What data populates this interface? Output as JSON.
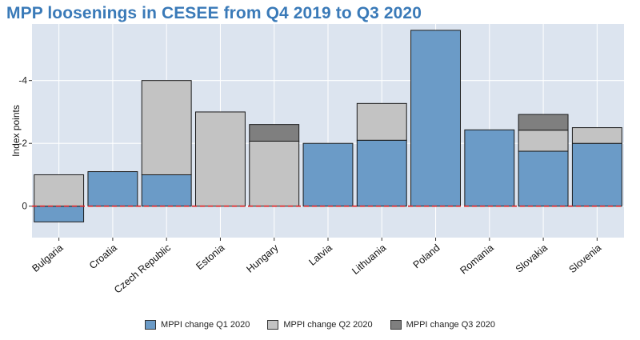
{
  "chart_data": {
    "type": "bar",
    "stacked": true,
    "title": "MPP loosenings in CESEE from Q4 2019 to Q3 2020",
    "xlabel": "",
    "ylabel": "Index points",
    "ylim": [
      -1,
      5.8
    ],
    "yticks": [
      0,
      2,
      4
    ],
    "ytick_labels": [
      "0",
      "-2",
      "-4"
    ],
    "categories": [
      "Bulgaria",
      "Croatia",
      "Czech Republic",
      "Estonia",
      "Hungary",
      "Latvia",
      "Lithuania",
      "Poland",
      "Romania",
      "Slovakia",
      "Slovenia"
    ],
    "series": [
      {
        "name": "MPPI change Q1 2020",
        "color": "#6b9bc7",
        "values": [
          -0.5,
          1.1,
          1.0,
          0,
          0,
          2.0,
          2.1,
          5.6,
          2.43,
          1.75,
          2.0
        ]
      },
      {
        "name": "MPPI change Q2 2020",
        "color": "#c3c3c3",
        "values": [
          1.0,
          0,
          3.0,
          3.0,
          2.07,
          0,
          1.17,
          0,
          0,
          0.67,
          0.5
        ]
      },
      {
        "name": "MPPI change Q3 2020",
        "color": "#7f7f7f",
        "values": [
          0,
          0,
          0,
          0,
          0.53,
          0,
          0,
          0,
          0,
          0.5,
          0
        ]
      }
    ],
    "reference_line": {
      "y": 0,
      "color": "#e02020",
      "style": "dashed"
    },
    "grid": true,
    "legend_position": "bottom-center"
  }
}
